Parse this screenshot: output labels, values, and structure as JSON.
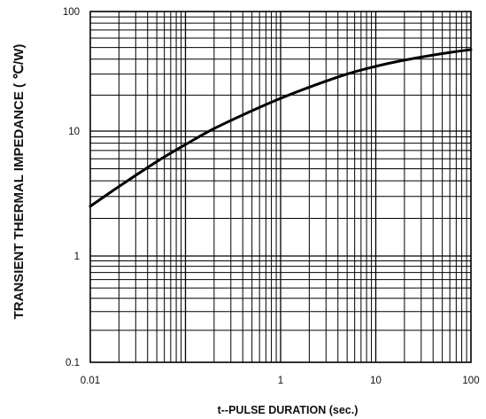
{
  "chart_data": {
    "type": "line",
    "title": "",
    "xlabel": "t--PULSE DURATION (sec.)",
    "ylabel": "TRANSIENT THERMAL IMPEDANCE ( ℃/W)",
    "x_scale": "log",
    "y_scale": "log",
    "xlim": [
      0.01,
      100
    ],
    "ylim": [
      0.1,
      100
    ],
    "x_ticks": [
      0.01,
      1,
      10,
      100
    ],
    "x_tick_labels": [
      "0.01",
      "1",
      "10",
      "100"
    ],
    "y_ticks": [
      0.1,
      1,
      10,
      100
    ],
    "y_tick_labels": [
      "0.1",
      "1",
      "10",
      "100"
    ],
    "grid": true,
    "series": [
      {
        "color": "#000000",
        "x": [
          0.01,
          0.02,
          0.05,
          0.1,
          0.2,
          0.5,
          1,
          2,
          5,
          10,
          20,
          50,
          100
        ],
        "y": [
          2.5,
          3.6,
          5.7,
          7.8,
          10.5,
          14.8,
          18.8,
          23.3,
          30.0,
          34.8,
          39.2,
          44.5,
          48.0
        ]
      }
    ]
  }
}
